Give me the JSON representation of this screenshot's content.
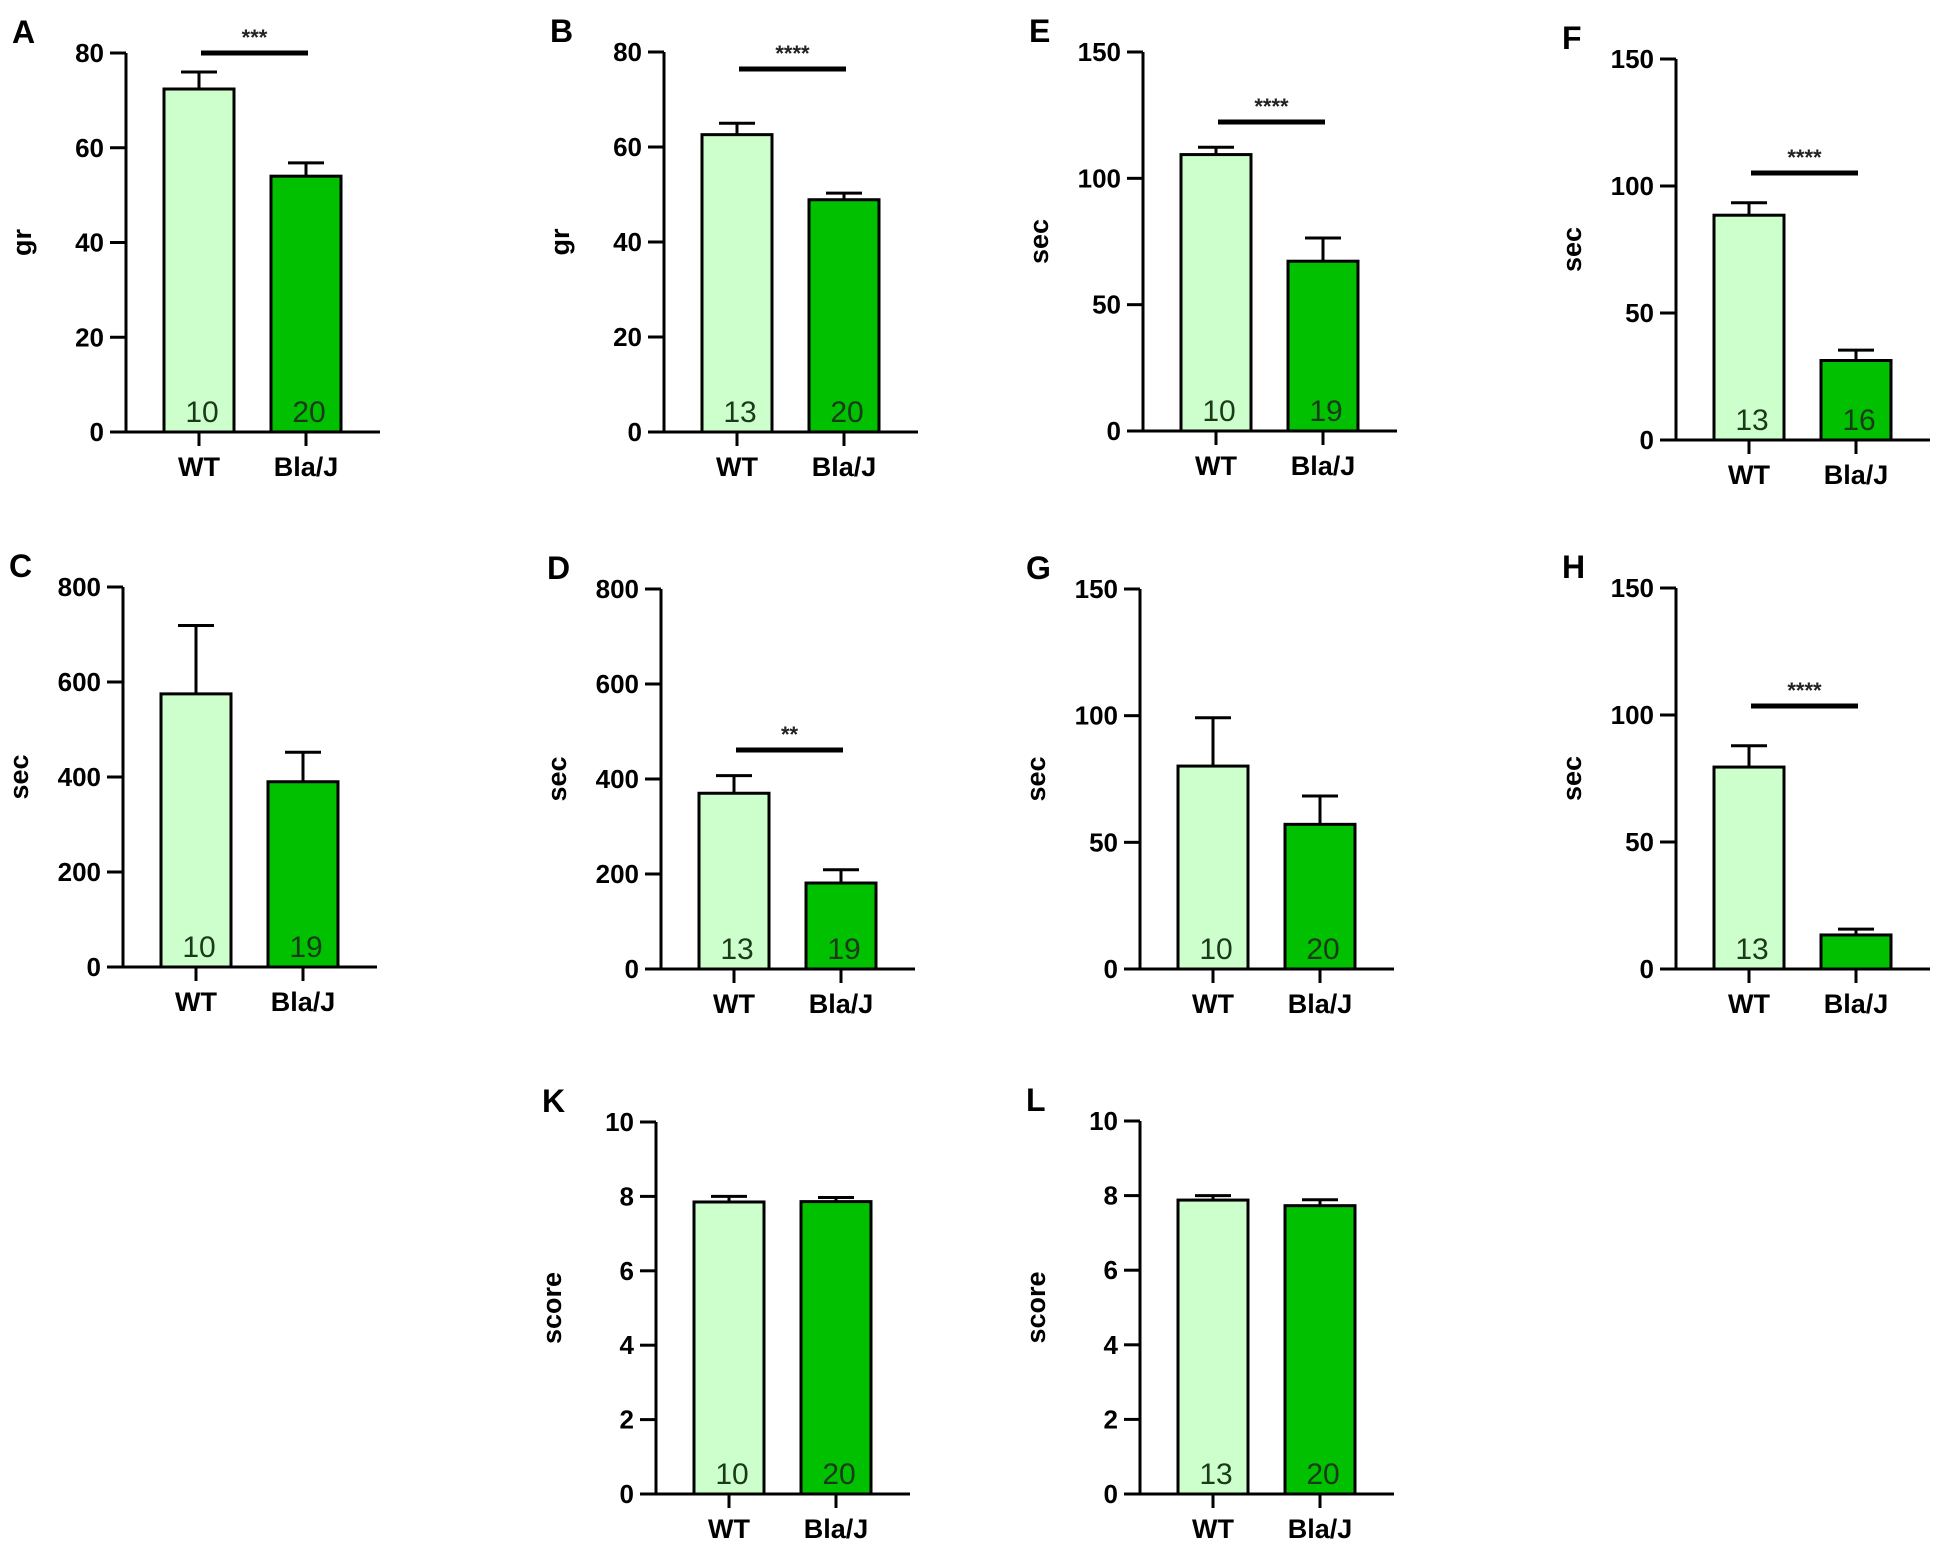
{
  "figure": {
    "colors": {
      "WT": "#ccffcc",
      "Bla/J": "#00c000",
      "axis": "#000000"
    }
  },
  "chart_data": [
    {
      "panel": "A",
      "type": "bar",
      "ylabel": "gr",
      "ylim": [
        0,
        80
      ],
      "yticks": [
        0,
        20,
        40,
        60,
        80
      ],
      "categories": [
        "WT",
        "Bla/J"
      ],
      "values": [
        72.4,
        54.0
      ],
      "errors": [
        3.6,
        2.8
      ],
      "n": [
        "10",
        "20"
      ],
      "significance": "***"
    },
    {
      "panel": "B",
      "type": "bar",
      "ylabel": "gr",
      "ylim": [
        0,
        80
      ],
      "yticks": [
        0,
        20,
        40,
        60,
        80
      ],
      "categories": [
        "WT",
        "Bla/J"
      ],
      "values": [
        62.6,
        48.9
      ],
      "errors": [
        2.4,
        1.4
      ],
      "n": [
        "13",
        "20"
      ],
      "significance": "****"
    },
    {
      "panel": "E",
      "type": "bar",
      "ylabel": "sec",
      "ylim": [
        0,
        150
      ],
      "yticks": [
        0,
        50,
        100,
        150
      ],
      "categories": [
        "WT",
        "Bla/J"
      ],
      "values": [
        109.4,
        67.2
      ],
      "errors": [
        2.9,
        9.2
      ],
      "n": [
        "10",
        "19"
      ],
      "significance": "****"
    },
    {
      "panel": "F",
      "type": "bar",
      "ylabel": "sec",
      "ylim": [
        0,
        150
      ],
      "yticks": [
        0,
        50,
        100,
        150
      ],
      "categories": [
        "WT",
        "Bla/J"
      ],
      "values": [
        88.5,
        31.3
      ],
      "errors": [
        4.9,
        4.1
      ],
      "n": [
        "13",
        "16"
      ],
      "significance": "****"
    },
    {
      "panel": "C",
      "type": "bar",
      "ylabel": "sec",
      "ylim": [
        0,
        800
      ],
      "yticks": [
        0,
        200,
        400,
        600,
        800
      ],
      "categories": [
        "WT",
        "Bla/J"
      ],
      "values": [
        575,
        390
      ],
      "errors": [
        144,
        62
      ],
      "n": [
        "10",
        "19"
      ],
      "significance": ""
    },
    {
      "panel": "D",
      "type": "bar",
      "ylabel": "sec",
      "ylim": [
        0,
        800
      ],
      "yticks": [
        0,
        200,
        400,
        600,
        800
      ],
      "categories": [
        "WT",
        "Bla/J"
      ],
      "values": [
        370,
        181
      ],
      "errors": [
        37,
        28
      ],
      "n": [
        "13",
        "19"
      ],
      "significance": "**"
    },
    {
      "panel": "G",
      "type": "bar",
      "ylabel": "sec",
      "ylim": [
        0,
        150
      ],
      "yticks": [
        0,
        50,
        100,
        150
      ],
      "categories": [
        "WT",
        "Bla/J"
      ],
      "values": [
        80.1,
        57.1
      ],
      "errors": [
        19.1,
        11.2
      ],
      "n": [
        "10",
        "20"
      ],
      "significance": ""
    },
    {
      "panel": "H",
      "type": "bar",
      "ylabel": "sec",
      "ylim": [
        0,
        150
      ],
      "yticks": [
        0,
        50,
        100,
        150
      ],
      "categories": [
        "WT",
        "Bla/J"
      ],
      "values": [
        79.5,
        13.4
      ],
      "errors": [
        8.4,
        2.3
      ],
      "n": [
        "13",
        ""
      ],
      "significance": "****"
    },
    {
      "panel": "K",
      "type": "bar",
      "ylabel": "score",
      "ylim": [
        0,
        10
      ],
      "yticks": [
        0,
        2,
        4,
        6,
        8,
        10
      ],
      "categories": [
        "WT",
        "Bla/J"
      ],
      "values": [
        7.85,
        7.86
      ],
      "errors": [
        0.15,
        0.11
      ],
      "n": [
        "10",
        "20"
      ],
      "significance": ""
    },
    {
      "panel": "L",
      "type": "bar",
      "ylabel": "score",
      "ylim": [
        0,
        10
      ],
      "yticks": [
        0,
        2,
        4,
        6,
        8,
        10
      ],
      "categories": [
        "WT",
        "Bla/J"
      ],
      "values": [
        7.88,
        7.73
      ],
      "errors": [
        0.12,
        0.16
      ],
      "n": [
        "13",
        "20"
      ],
      "significance": ""
    }
  ]
}
